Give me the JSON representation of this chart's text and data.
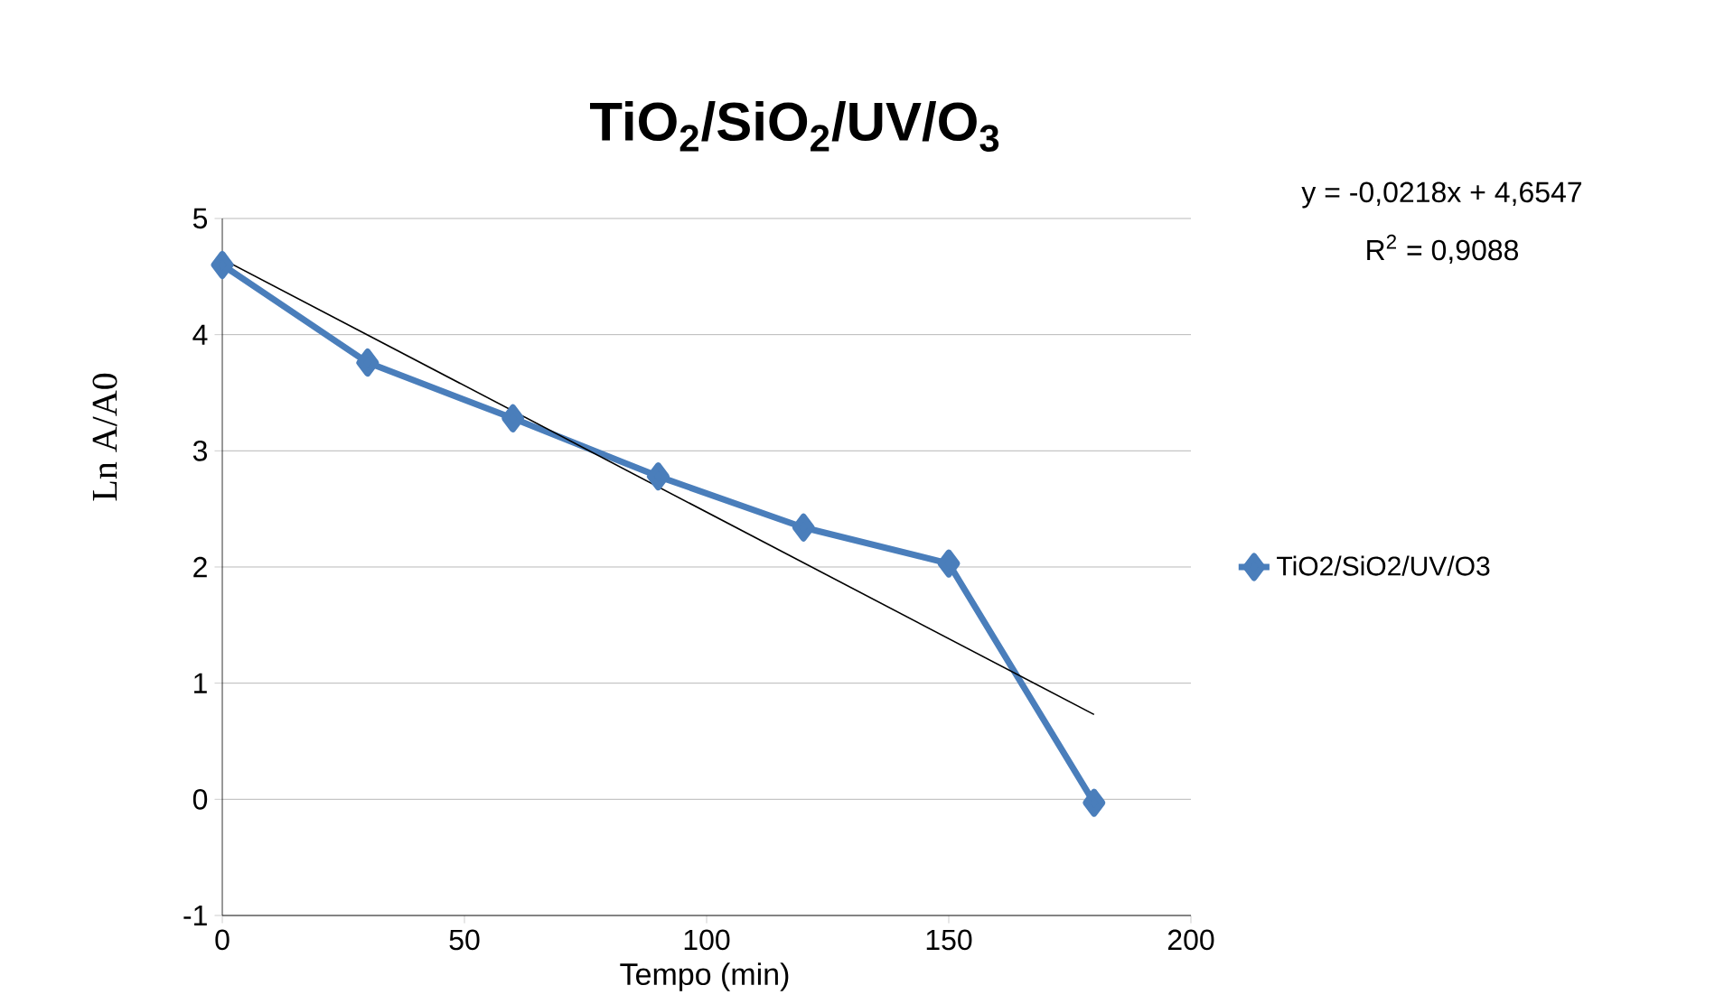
{
  "chart_data": {
    "type": "line",
    "title": "TiO$_{2}$/SiO$_{2}$/UV/O$_{3}$",
    "xlabel": "Tempo (min)",
    "ylabel": "Ln A/A0",
    "annotations": [
      "y = -0,0218x + 4,6547",
      "R$^{2}$ = 0,9088"
    ],
    "x": [
      0,
      30,
      60,
      90,
      120,
      150,
      180
    ],
    "series": [
      {
        "name": "TiO2/SiO2/UV/O3",
        "color": "#4a7ebb",
        "values": [
          4.6,
          3.76,
          3.28,
          2.78,
          2.34,
          2.03,
          -0.03
        ]
      },
      {
        "type": "line",
        "marker": "none",
        "color": "#000000",
        "x": [
          0,
          180
        ],
        "values": [
          4.65,
          0.73
        ]
      }
    ],
    "xlim": [
      0,
      200
    ],
    "ylim": [
      -1,
      5
    ],
    "xticks": [
      0,
      50,
      100,
      150,
      200
    ],
    "yticks": [
      -1,
      0,
      1,
      2,
      3,
      4,
      5
    ],
    "grid": "y",
    "legend": "right",
    "marker": "diamond",
    "line_style": "solid"
  }
}
